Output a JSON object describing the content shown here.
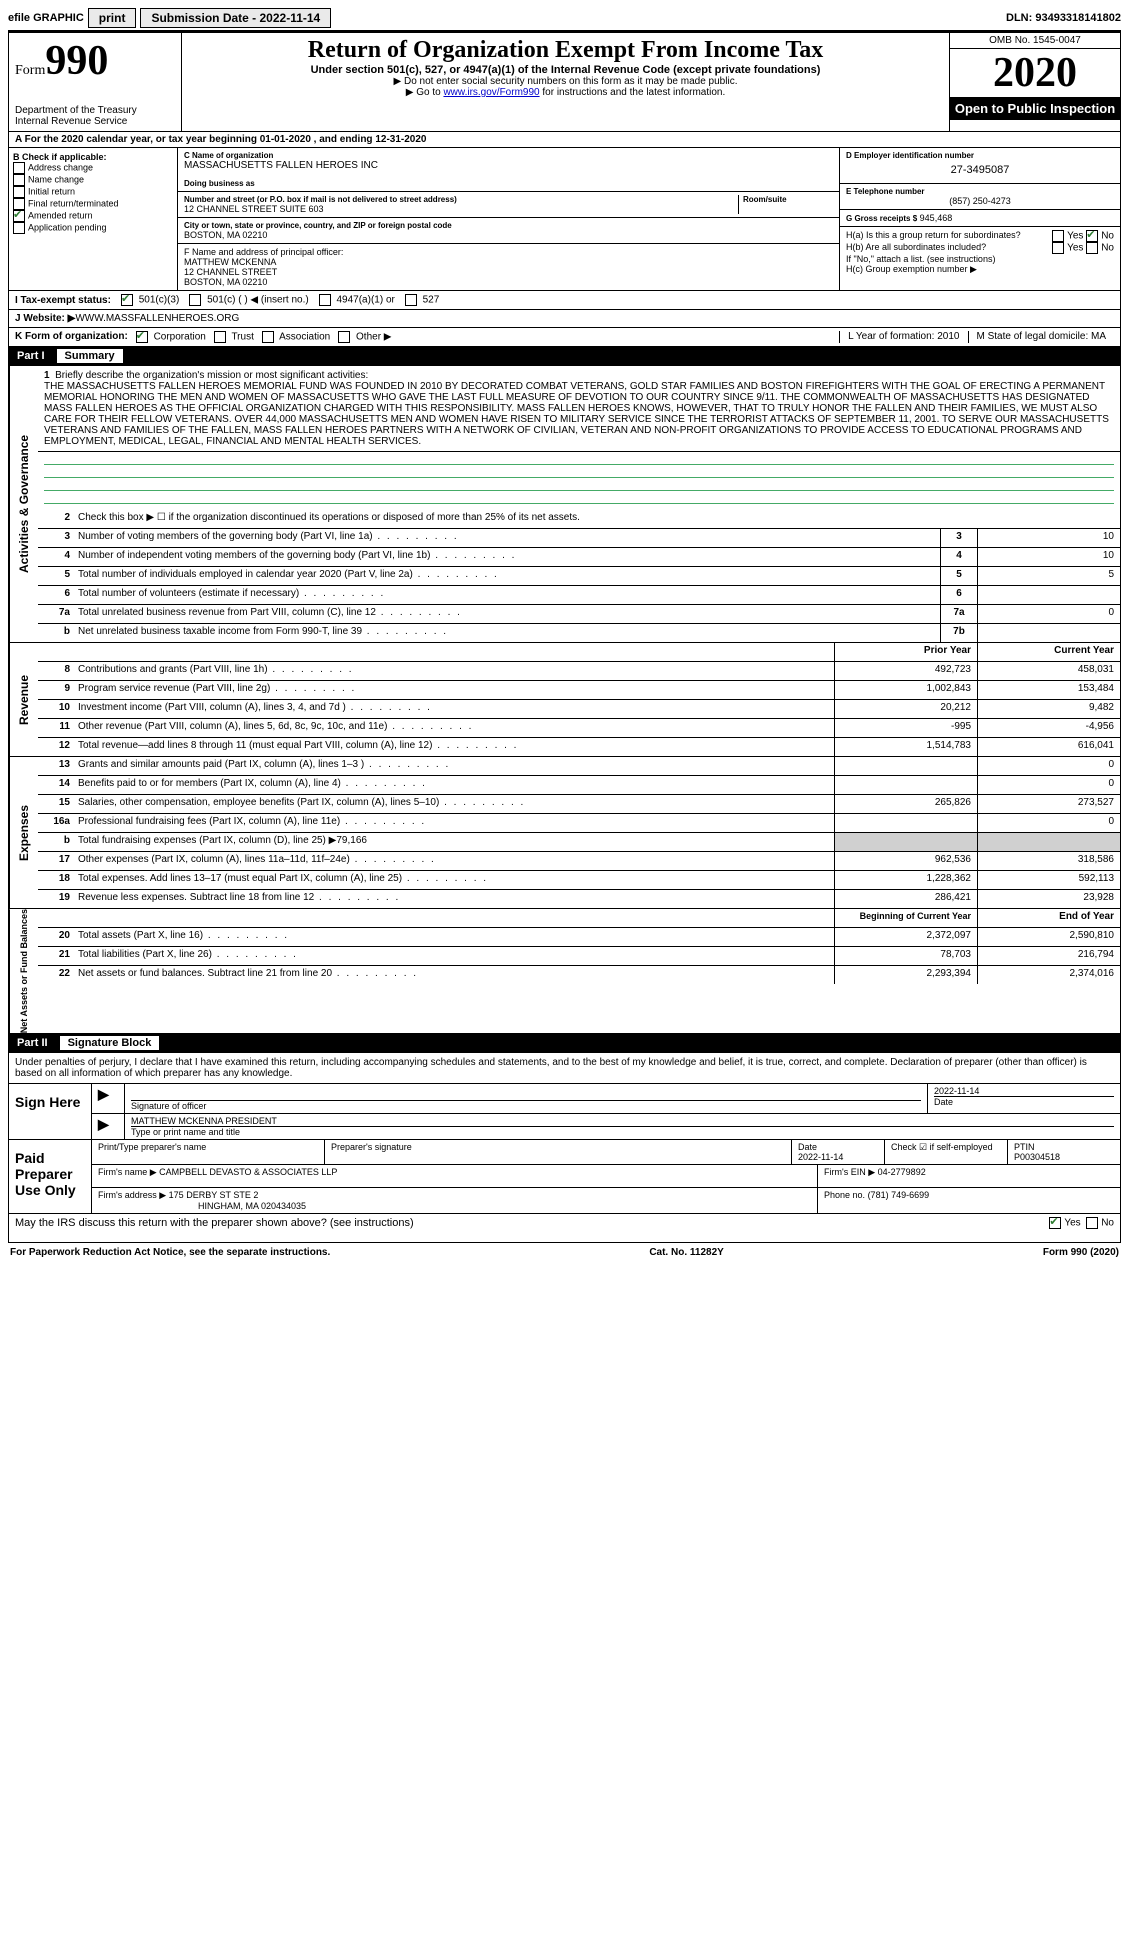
{
  "topbar": {
    "efile": "efile GRAPHIC",
    "print": "print",
    "sub_label": "Submission Date - ",
    "sub_date": "2022-11-14",
    "dln_label": "DLN: ",
    "dln": "93493318141802"
  },
  "header": {
    "form_word": "Form",
    "form_num": "990",
    "dept": "Department of the Treasury\nInternal Revenue Service",
    "title": "Return of Organization Exempt From Income Tax",
    "sub": "Under section 501(c), 527, or 4947(a)(1) of the Internal Revenue Code (except private foundations)",
    "note1": "▶ Do not enter social security numbers on this form as it may be made public.",
    "note2_pre": "▶ Go to ",
    "note2_link": "www.irs.gov/Form990",
    "note2_post": " for instructions and the latest information.",
    "omb": "OMB No. 1545-0047",
    "year": "2020",
    "open": "Open to Public Inspection"
  },
  "period": {
    "text": "A For the 2020 calendar year, or tax year beginning 01-01-2020    , and ending 12-31-2020"
  },
  "boxB": {
    "title": "B Check if applicable:",
    "items": [
      "Address change",
      "Name change",
      "Initial return",
      "Final return/terminated",
      "Amended return",
      "Application pending"
    ],
    "checked_index": 4
  },
  "boxC": {
    "label_name": "C Name of organization",
    "org": "MASSACHUSETTS FALLEN HEROES INC",
    "dba_label": "Doing business as",
    "addr_label": "Number and street (or P.O. box if mail is not delivered to street address)",
    "room_label": "Room/suite",
    "addr": "12 CHANNEL STREET SUITE 603",
    "city_label": "City or town, state or province, country, and ZIP or foreign postal code",
    "city": "BOSTON, MA  02210"
  },
  "boxD": {
    "label": "D Employer identification number",
    "value": "27-3495087"
  },
  "boxE": {
    "label": "E Telephone number",
    "value": "(857) 250-4273"
  },
  "boxG": {
    "label": "G Gross receipts $",
    "value": "945,468"
  },
  "boxF": {
    "label": "F  Name and address of principal officer:",
    "name": "MATTHEW MCKENNA",
    "addr1": "12 CHANNEL STREET",
    "addr2": "BOSTON, MA  02210"
  },
  "boxH": {
    "a": "H(a)  Is this a group return for subordinates?",
    "b": "H(b)  Are all subordinates included?",
    "b_note": "If \"No,\" attach a list. (see instructions)",
    "c": "H(c)  Group exemption number ▶",
    "yes": "Yes",
    "no": "No"
  },
  "status": {
    "label": "I   Tax-exempt status:",
    "opts": [
      "501(c)(3)",
      "501(c) (  ) ◀ (insert no.)",
      "4947(a)(1) or",
      "527"
    ]
  },
  "website": {
    "label": "J   Website: ▶",
    "value": " WWW.MASSFALLENHEROES.ORG"
  },
  "korg": {
    "label": "K Form of organization:",
    "opts": [
      "Corporation",
      "Trust",
      "Association",
      "Other ▶"
    ],
    "L": "L Year of formation: 2010",
    "M": "M State of legal domicile: MA"
  },
  "part1": {
    "num": "Part I",
    "title": "Summary"
  },
  "mission": {
    "num": "1",
    "label": "Briefly describe the organization's mission or most significant activities:",
    "text": "THE MASSACHUSETTS FALLEN HEROES MEMORIAL FUND WAS FOUNDED IN 2010 BY DECORATED COMBAT VETERANS, GOLD STAR FAMILIES AND BOSTON FIREFIGHTERS WITH THE GOAL OF ERECTING A PERMANENT MEMORIAL HONORING THE MEN AND WOMEN OF MASSACUSETTS WHO GAVE THE LAST FULL MEASURE OF DEVOTION TO OUR COUNTRY SINCE 9/11. THE COMMONWEALTH OF MASSACHUSETTS HAS DESIGNATED MASS FALLEN HEROES AS THE OFFICIAL ORGANIZATION CHARGED WITH THIS RESPONSIBILITY. MASS FALLEN HEROES KNOWS, HOWEVER, THAT TO TRULY HONOR THE FALLEN AND THEIR FAMILIES, WE MUST ALSO CARE FOR THEIR FELLOW VETERANS. OVER 44,000 MASSACHUSETTS MEN AND WOMEN HAVE RISEN TO MILITARY SERVICE SINCE THE TERRORIST ATTACKS OF SEPTEMBER 11, 2001. TO SERVE OUR MASSACHUSETTS VETERANS AND FAMILIES OF THE FALLEN, MASS FALLEN HEROES PARTNERS WITH A NETWORK OF CIVILIAN, VETERAN AND NON-PROFIT ORGANIZATIONS TO PROVIDE ACCESS TO EDUCATIONAL PROGRAMS AND EMPLOYMENT, MEDICAL, LEGAL, FINANCIAL AND MENTAL HEALTH SERVICES."
  },
  "sideLabels": {
    "ag": "Activities & Governance",
    "rev": "Revenue",
    "exp": "Expenses",
    "net": "Net Assets or Fund Balances"
  },
  "lines_ag": [
    {
      "n": "2",
      "d": "Check this box ▶ ☐ if the organization discontinued its operations or disposed of more than 25% of its net assets."
    },
    {
      "n": "3",
      "d": "Number of voting members of the governing body (Part VI, line 1a)",
      "code": "3",
      "v": "10"
    },
    {
      "n": "4",
      "d": "Number of independent voting members of the governing body (Part VI, line 1b)",
      "code": "4",
      "v": "10"
    },
    {
      "n": "5",
      "d": "Total number of individuals employed in calendar year 2020 (Part V, line 2a)",
      "code": "5",
      "v": "5"
    },
    {
      "n": "6",
      "d": "Total number of volunteers (estimate if necessary)",
      "code": "6",
      "v": ""
    },
    {
      "n": "7a",
      "d": "Total unrelated business revenue from Part VIII, column (C), line 12",
      "code": "7a",
      "v": "0"
    },
    {
      "n": "b",
      "d": "Net unrelated business taxable income from Form 990-T, line 39",
      "code": "7b",
      "v": ""
    }
  ],
  "col_headers": {
    "prior": "Prior Year",
    "current": "Current Year"
  },
  "lines_rev": [
    {
      "n": "8",
      "d": "Contributions and grants (Part VIII, line 1h)",
      "p": "492,723",
      "c": "458,031"
    },
    {
      "n": "9",
      "d": "Program service revenue (Part VIII, line 2g)",
      "p": "1,002,843",
      "c": "153,484"
    },
    {
      "n": "10",
      "d": "Investment income (Part VIII, column (A), lines 3, 4, and 7d )",
      "p": "20,212",
      "c": "9,482"
    },
    {
      "n": "11",
      "d": "Other revenue (Part VIII, column (A), lines 5, 6d, 8c, 9c, 10c, and 11e)",
      "p": "-995",
      "c": "-4,956"
    },
    {
      "n": "12",
      "d": "Total revenue—add lines 8 through 11 (must equal Part VIII, column (A), line 12)",
      "p": "1,514,783",
      "c": "616,041"
    }
  ],
  "lines_exp": [
    {
      "n": "13",
      "d": "Grants and similar amounts paid (Part IX, column (A), lines 1–3 )",
      "p": "",
      "c": "0"
    },
    {
      "n": "14",
      "d": "Benefits paid to or for members (Part IX, column (A), line 4)",
      "p": "",
      "c": "0"
    },
    {
      "n": "15",
      "d": "Salaries, other compensation, employee benefits (Part IX, column (A), lines 5–10)",
      "p": "265,826",
      "c": "273,527"
    },
    {
      "n": "16a",
      "d": "Professional fundraising fees (Part IX, column (A), line 11e)",
      "p": "",
      "c": "0"
    },
    {
      "n": "b",
      "d": "Total fundraising expenses (Part IX, column (D), line 25) ▶79,166",
      "shaded": true
    },
    {
      "n": "17",
      "d": "Other expenses (Part IX, column (A), lines 11a–11d, 11f–24e)",
      "p": "962,536",
      "c": "318,586"
    },
    {
      "n": "18",
      "d": "Total expenses. Add lines 13–17 (must equal Part IX, column (A), line 25)",
      "p": "1,228,362",
      "c": "592,113"
    },
    {
      "n": "19",
      "d": "Revenue less expenses. Subtract line 18 from line 12",
      "p": "286,421",
      "c": "23,928"
    }
  ],
  "net_headers": {
    "begin": "Beginning of Current Year",
    "end": "End of Year"
  },
  "lines_net": [
    {
      "n": "20",
      "d": "Total assets (Part X, line 16)",
      "p": "2,372,097",
      "c": "2,590,810"
    },
    {
      "n": "21",
      "d": "Total liabilities (Part X, line 26)",
      "p": "78,703",
      "c": "216,794"
    },
    {
      "n": "22",
      "d": "Net assets or fund balances. Subtract line 21 from line 20",
      "p": "2,293,394",
      "c": "2,374,016"
    }
  ],
  "part2": {
    "num": "Part II",
    "title": "Signature Block"
  },
  "sig": {
    "declare": "Under penalties of perjury, I declare that I have examined this return, including accompanying schedules and statements, and to the best of my knowledge and belief, it is true, correct, and complete. Declaration of preparer (other than officer) is based on all information of which preparer has any knowledge.",
    "sign_here": "Sign Here",
    "sig_officer": "Signature of officer",
    "date": "2022-11-14",
    "date_label": "Date",
    "officer_name": "MATTHEW MCKENNA  PRESIDENT",
    "officer_label": "Type or print name and title",
    "paid": "Paid Preparer Use Only",
    "prep_name_label": "Print/Type preparer's name",
    "prep_sig_label": "Preparer's signature",
    "prep_date_label": "Date",
    "prep_date": "2022-11-14",
    "check_label": "Check ☑ if self-employed",
    "ptin_label": "PTIN",
    "ptin": "P00304518",
    "firm_name_label": "Firm's name    ▶",
    "firm_name": "CAMPBELL DEVASTO & ASSOCIATES LLP",
    "firm_ein_label": "Firm's EIN ▶",
    "firm_ein": "04-2779892",
    "firm_addr_label": "Firm's address ▶",
    "firm_addr": "175 DERBY ST STE 2",
    "firm_city": "HINGHAM, MA  020434035",
    "phone_label": "Phone no.",
    "phone": "(781) 749-6699",
    "discuss": "May the IRS discuss this return with the preparer shown above? (see instructions)",
    "yes": "Yes",
    "no": "No"
  },
  "footer": {
    "left": "For Paperwork Reduction Act Notice, see the separate instructions.",
    "mid": "Cat. No. 11282Y",
    "right": "Form 990 (2020)"
  }
}
